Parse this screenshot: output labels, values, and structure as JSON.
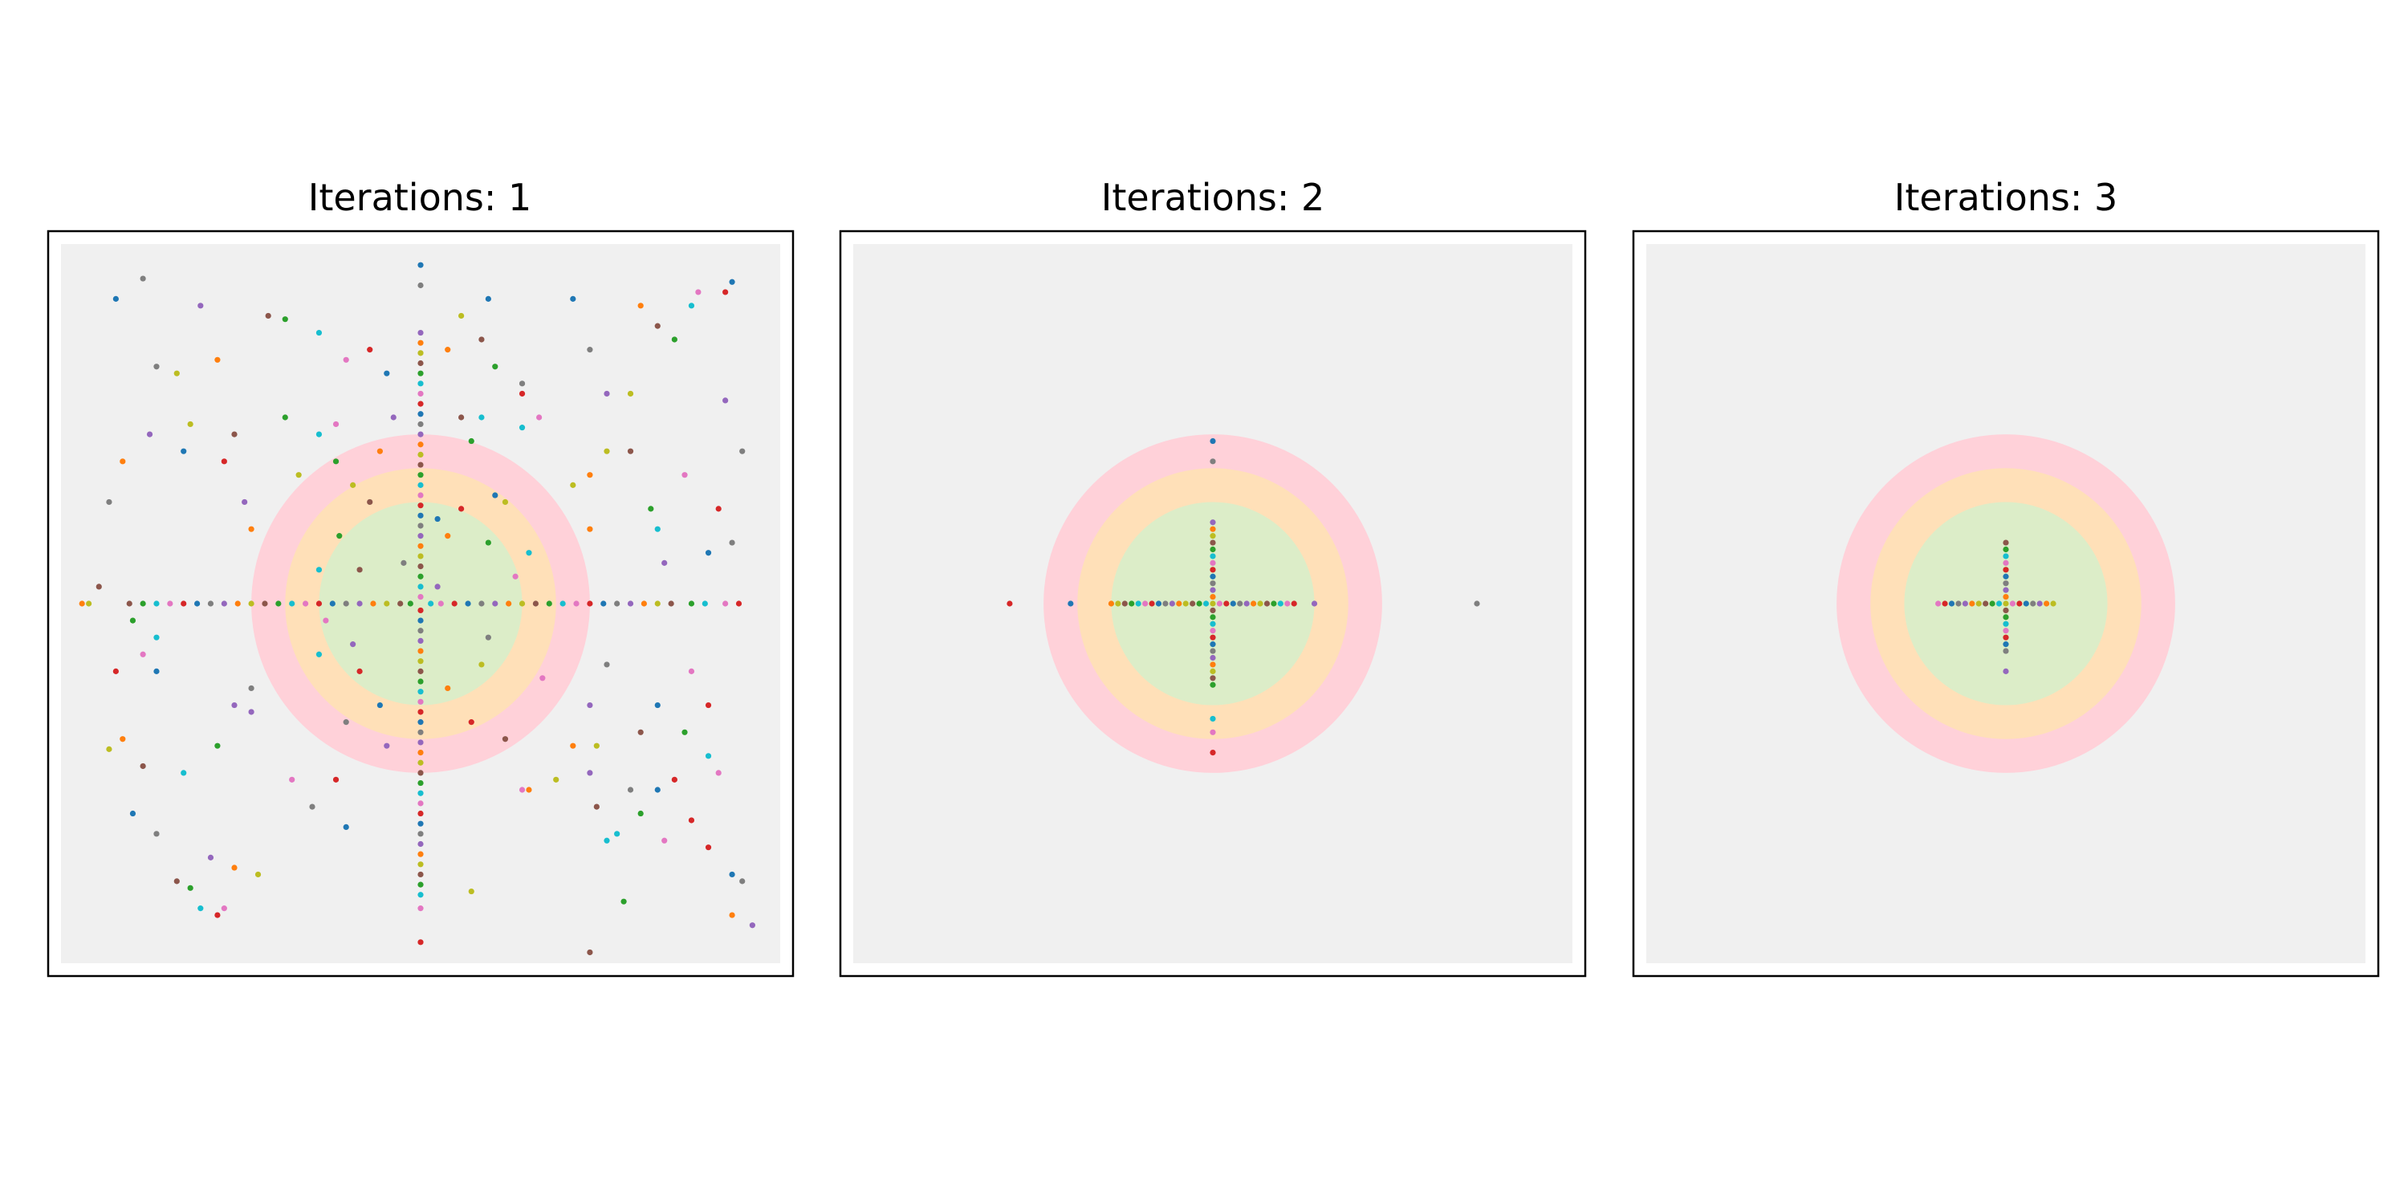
{
  "figure": {
    "background": "#ffffff"
  },
  "colors": {
    "panel_background": "#f0f0f0",
    "frame": "#000000",
    "ring_outer": "#ffd1d9",
    "ring_middle": "#ffe0b8",
    "ring_inner": "#dcedc8",
    "palette": [
      "#1f77b4",
      "#ff7f0e",
      "#2ca02c",
      "#d62728",
      "#9467bd",
      "#8c564b",
      "#e377c2",
      "#7f7f7f",
      "#bcbd22",
      "#17becf"
    ]
  },
  "chart_data": [
    {
      "type": "scatter",
      "title": "Iterations: 1",
      "xlim": [
        -1.1,
        1.1
      ],
      "ylim": [
        -1.1,
        1.1
      ],
      "axes_visible": false,
      "grid": false,
      "rings": [
        0.5,
        0.4,
        0.3
      ],
      "points": [
        [
          -0.9,
          0.9
        ],
        [
          -0.82,
          0.96
        ],
        [
          -0.65,
          0.88
        ],
        [
          -0.6,
          0.72
        ],
        [
          -0.72,
          0.68
        ],
        [
          -0.45,
          0.85
        ],
        [
          -0.4,
          0.84
        ],
        [
          -0.3,
          0.8
        ],
        [
          -0.22,
          0.72
        ],
        [
          -0.15,
          0.75
        ],
        [
          -0.1,
          0.68
        ],
        [
          -0.78,
          0.7
        ],
        [
          -0.8,
          0.5
        ],
        [
          -0.88,
          0.42
        ],
        [
          -0.68,
          0.53
        ],
        [
          -0.55,
          0.5
        ],
        [
          -0.4,
          0.55
        ],
        [
          -0.3,
          0.5
        ],
        [
          -0.25,
          0.53
        ],
        [
          -0.58,
          0.42
        ],
        [
          -0.7,
          0.45
        ],
        [
          -0.92,
          0.3
        ],
        [
          -0.52,
          0.3
        ],
        [
          -0.5,
          0.22
        ],
        [
          -0.36,
          0.38
        ],
        [
          -0.95,
          0.05
        ],
        [
          -0.85,
          -0.05
        ],
        [
          -0.78,
          -0.1
        ],
        [
          -0.82,
          -0.15
        ],
        [
          -0.9,
          -0.2
        ],
        [
          -0.78,
          -0.2
        ],
        [
          -0.5,
          -0.25
        ],
        [
          -0.55,
          -0.3
        ],
        [
          -0.88,
          -0.4
        ],
        [
          -0.92,
          -0.43
        ],
        [
          -0.82,
          -0.48
        ],
        [
          -0.6,
          -0.42
        ],
        [
          -0.7,
          -0.5
        ],
        [
          -0.38,
          -0.52
        ],
        [
          -0.25,
          -0.52
        ],
        [
          -0.85,
          -0.62
        ],
        [
          -0.78,
          -0.68
        ],
        [
          -0.62,
          -0.75
        ],
        [
          -0.55,
          -0.78
        ],
        [
          -0.48,
          -0.8
        ],
        [
          -0.72,
          -0.82
        ],
        [
          -0.68,
          -0.84
        ],
        [
          -0.65,
          -0.9
        ],
        [
          -0.58,
          -0.9
        ],
        [
          -0.6,
          -0.92
        ],
        [
          -0.22,
          -0.66
        ],
        [
          -0.32,
          -0.6
        ],
        [
          -0.5,
          -0.32
        ],
        [
          0.08,
          0.75
        ],
        [
          0.12,
          0.85
        ],
        [
          0.18,
          0.78
        ],
        [
          0.22,
          0.7
        ],
        [
          0.3,
          0.52
        ],
        [
          0.35,
          0.55
        ],
        [
          0.3,
          0.62
        ],
        [
          0.45,
          0.9
        ],
        [
          0.5,
          0.75
        ],
        [
          0.55,
          0.62
        ],
        [
          0.65,
          0.88
        ],
        [
          0.62,
          0.62
        ],
        [
          0.7,
          0.82
        ],
        [
          0.75,
          0.78
        ],
        [
          0.8,
          0.88
        ],
        [
          0.82,
          0.92
        ],
        [
          0.9,
          0.92
        ],
        [
          0.92,
          0.95
        ],
        [
          0.95,
          0.45
        ],
        [
          0.9,
          0.6
        ],
        [
          0.5,
          0.38
        ],
        [
          0.55,
          0.45
        ],
        [
          0.62,
          0.45
        ],
        [
          0.68,
          0.28
        ],
        [
          0.7,
          0.22
        ],
        [
          0.78,
          0.38
        ],
        [
          0.88,
          0.28
        ],
        [
          0.85,
          0.15
        ],
        [
          0.92,
          0.18
        ],
        [
          0.72,
          0.12
        ],
        [
          0.5,
          0.22
        ],
        [
          0.45,
          0.35
        ],
        [
          0.12,
          0.55
        ],
        [
          0.15,
          0.48
        ],
        [
          0.18,
          0.55
        ],
        [
          0.8,
          -0.2
        ],
        [
          0.85,
          -0.3
        ],
        [
          0.7,
          -0.3
        ],
        [
          0.55,
          -0.18
        ],
        [
          0.5,
          -0.3
        ],
        [
          0.45,
          -0.42
        ],
        [
          0.52,
          -0.42
        ],
        [
          0.65,
          -0.38
        ],
        [
          0.78,
          -0.38
        ],
        [
          0.85,
          -0.45
        ],
        [
          0.88,
          -0.5
        ],
        [
          0.75,
          -0.52
        ],
        [
          0.7,
          -0.55
        ],
        [
          0.62,
          -0.55
        ],
        [
          0.5,
          -0.5
        ],
        [
          0.32,
          -0.55
        ],
        [
          0.4,
          -0.52
        ],
        [
          0.52,
          -0.6
        ],
        [
          0.65,
          -0.62
        ],
        [
          0.58,
          -0.68
        ],
        [
          0.72,
          -0.7
        ],
        [
          0.85,
          -0.72
        ],
        [
          0.92,
          -0.8
        ],
        [
          0.95,
          -0.82
        ],
        [
          0.98,
          -0.95
        ],
        [
          0.92,
          -0.92
        ],
        [
          0.15,
          -0.85
        ],
        [
          0.5,
          -1.03
        ],
        [
          0.6,
          -0.88
        ],
        [
          0.55,
          -0.7
        ],
        [
          0.3,
          -0.55
        ],
        [
          0.8,
          -0.64
        ],
        [
          0.2,
          0.9
        ],
        [
          0.3,
          0.65
        ],
        [
          -0.08,
          0.55
        ],
        [
          -0.12,
          0.45
        ],
        [
          -0.2,
          0.35
        ],
        [
          -0.15,
          0.3
        ],
        [
          -0.25,
          0.42
        ],
        [
          -0.3,
          0.1
        ],
        [
          -0.28,
          -0.05
        ],
        [
          -0.18,
          -0.2
        ],
        [
          -0.12,
          -0.3
        ],
        [
          -0.22,
          -0.35
        ],
        [
          -0.1,
          -0.42
        ],
        [
          0.08,
          -0.25
        ],
        [
          0.18,
          -0.18
        ],
        [
          0.25,
          -0.4
        ],
        [
          0.2,
          0.18
        ],
        [
          0.32,
          0.15
        ],
        [
          0.28,
          0.08
        ],
        [
          0.12,
          0.28
        ],
        [
          0.22,
          0.32
        ],
        [
          -0.05,
          0.12
        ],
        [
          0.05,
          0.05
        ],
        [
          0.08,
          0.2
        ],
        [
          0.25,
          0.3
        ],
        [
          -0.18,
          0.1
        ],
        [
          -0.24,
          0.2
        ],
        [
          -0.3,
          -0.15
        ],
        [
          0.36,
          -0.22
        ],
        [
          0.15,
          -0.35
        ],
        [
          0.05,
          0.25
        ],
        [
          0.2,
          -0.1
        ],
        [
          -0.2,
          -0.12
        ],
        [
          -1.0,
          0.0
        ],
        [
          -0.98,
          0.0
        ],
        [
          -0.86,
          0.0
        ],
        [
          -0.82,
          0.0
        ],
        [
          -0.78,
          0.0
        ],
        [
          -0.74,
          0.0
        ],
        [
          -0.7,
          0.0
        ],
        [
          -0.66,
          0.0
        ],
        [
          -0.62,
          0.0
        ],
        [
          -0.58,
          0.0
        ],
        [
          -0.54,
          0.0
        ],
        [
          -0.5,
          0.0
        ],
        [
          -0.46,
          0.0
        ],
        [
          -0.42,
          0.0
        ],
        [
          -0.38,
          0.0
        ],
        [
          -0.34,
          0.0
        ],
        [
          -0.3,
          0.0
        ],
        [
          -0.26,
          0.0
        ],
        [
          -0.22,
          0.0
        ],
        [
          -0.18,
          0.0
        ],
        [
          -0.14,
          0.0
        ],
        [
          -0.1,
          0.0
        ],
        [
          -0.06,
          0.0
        ],
        [
          -0.03,
          0.0
        ],
        [
          0.03,
          0.0
        ],
        [
          0.06,
          0.0
        ],
        [
          0.1,
          0.0
        ],
        [
          0.14,
          0.0
        ],
        [
          0.18,
          0.0
        ],
        [
          0.22,
          0.0
        ],
        [
          0.26,
          0.0
        ],
        [
          0.3,
          0.0
        ],
        [
          0.34,
          0.0
        ],
        [
          0.38,
          0.0
        ],
        [
          0.42,
          0.0
        ],
        [
          0.46,
          0.0
        ],
        [
          0.5,
          0.0
        ],
        [
          0.54,
          0.0
        ],
        [
          0.58,
          0.0
        ],
        [
          0.62,
          0.0
        ],
        [
          0.66,
          0.0
        ],
        [
          0.7,
          0.0
        ],
        [
          0.74,
          0.0
        ],
        [
          0.8,
          0.0
        ],
        [
          0.84,
          0.0
        ],
        [
          0.9,
          0.0
        ],
        [
          0.94,
          0.0
        ],
        [
          0.0,
          1.0
        ],
        [
          0.0,
          0.94
        ],
        [
          0.0,
          0.8
        ],
        [
          0.0,
          0.77
        ],
        [
          0.0,
          0.74
        ],
        [
          0.0,
          0.71
        ],
        [
          0.0,
          0.68
        ],
        [
          0.0,
          0.65
        ],
        [
          0.0,
          0.62
        ],
        [
          0.0,
          0.59
        ],
        [
          0.0,
          0.56
        ],
        [
          0.0,
          0.53
        ],
        [
          0.0,
          0.5
        ],
        [
          0.0,
          0.47
        ],
        [
          0.0,
          0.44
        ],
        [
          0.0,
          0.41
        ],
        [
          0.0,
          0.38
        ],
        [
          0.0,
          0.35
        ],
        [
          0.0,
          0.32
        ],
        [
          0.0,
          0.29
        ],
        [
          0.0,
          0.26
        ],
        [
          0.0,
          0.23
        ],
        [
          0.0,
          0.2
        ],
        [
          0.0,
          0.17
        ],
        [
          0.0,
          0.14
        ],
        [
          0.0,
          0.11
        ],
        [
          0.0,
          0.08
        ],
        [
          0.0,
          0.05
        ],
        [
          0.0,
          0.02
        ],
        [
          0.0,
          -0.02
        ],
        [
          0.0,
          -0.05
        ],
        [
          0.0,
          -0.08
        ],
        [
          0.0,
          -0.11
        ],
        [
          0.0,
          -0.14
        ],
        [
          0.0,
          -0.17
        ],
        [
          0.0,
          -0.2
        ],
        [
          0.0,
          -0.23
        ],
        [
          0.0,
          -0.26
        ],
        [
          0.0,
          -0.29
        ],
        [
          0.0,
          -0.32
        ],
        [
          0.0,
          -0.35
        ],
        [
          0.0,
          -0.38
        ],
        [
          0.0,
          -0.41
        ],
        [
          0.0,
          -0.44
        ],
        [
          0.0,
          -0.47
        ],
        [
          0.0,
          -0.5
        ],
        [
          0.0,
          -0.53
        ],
        [
          0.0,
          -0.56
        ],
        [
          0.0,
          -0.59
        ],
        [
          0.0,
          -0.62
        ],
        [
          0.0,
          -0.65
        ],
        [
          0.0,
          -0.68
        ],
        [
          0.0,
          -0.71
        ],
        [
          0.0,
          -0.74
        ],
        [
          0.0,
          -0.77
        ],
        [
          0.0,
          -0.8
        ],
        [
          0.0,
          -0.83
        ],
        [
          0.0,
          -0.86
        ],
        [
          0.0,
          -0.9
        ],
        [
          0.0,
          -1.0
        ]
      ]
    },
    {
      "type": "scatter",
      "title": "Iterations: 2",
      "xlim": [
        -1.1,
        1.1
      ],
      "ylim": [
        -1.1,
        1.1
      ],
      "axes_visible": false,
      "grid": false,
      "rings": [
        0.5,
        0.4,
        0.3
      ],
      "points": [
        [
          -0.6,
          0.0
        ],
        [
          -0.42,
          0.0
        ],
        [
          0.78,
          0.0
        ],
        [
          0.3,
          0.0
        ],
        [
          -0.3,
          0.0
        ],
        [
          -0.28,
          0.0
        ],
        [
          -0.26,
          0.0
        ],
        [
          -0.24,
          0.0
        ],
        [
          -0.22,
          0.0
        ],
        [
          -0.2,
          0.0
        ],
        [
          -0.18,
          0.0
        ],
        [
          -0.16,
          0.0
        ],
        [
          -0.14,
          0.0
        ],
        [
          -0.12,
          0.0
        ],
        [
          -0.1,
          0.0
        ],
        [
          -0.08,
          0.0
        ],
        [
          -0.06,
          0.0
        ],
        [
          -0.04,
          0.0
        ],
        [
          -0.02,
          0.0
        ],
        [
          0.02,
          0.0
        ],
        [
          0.04,
          0.0
        ],
        [
          0.06,
          0.0
        ],
        [
          0.08,
          0.0
        ],
        [
          0.1,
          0.0
        ],
        [
          0.12,
          0.0
        ],
        [
          0.14,
          0.0
        ],
        [
          0.16,
          0.0
        ],
        [
          0.18,
          0.0
        ],
        [
          0.2,
          0.0
        ],
        [
          0.22,
          0.0
        ],
        [
          0.24,
          0.0
        ],
        [
          0.0,
          0.48
        ],
        [
          0.0,
          0.42
        ],
        [
          0.0,
          0.24
        ],
        [
          0.0,
          0.22
        ],
        [
          0.0,
          0.2
        ],
        [
          0.0,
          0.18
        ],
        [
          0.0,
          0.16
        ],
        [
          0.0,
          0.14
        ],
        [
          0.0,
          0.12
        ],
        [
          0.0,
          0.1
        ],
        [
          0.0,
          0.08
        ],
        [
          0.0,
          0.06
        ],
        [
          0.0,
          0.04
        ],
        [
          0.0,
          0.02
        ],
        [
          0.0,
          0.0
        ],
        [
          0.0,
          -0.02
        ],
        [
          0.0,
          -0.04
        ],
        [
          0.0,
          -0.06
        ],
        [
          0.0,
          -0.08
        ],
        [
          0.0,
          -0.1
        ],
        [
          0.0,
          -0.12
        ],
        [
          0.0,
          -0.14
        ],
        [
          0.0,
          -0.16
        ],
        [
          0.0,
          -0.18
        ],
        [
          0.0,
          -0.2
        ],
        [
          0.0,
          -0.22
        ],
        [
          0.0,
          -0.24
        ],
        [
          0.0,
          -0.34
        ],
        [
          0.0,
          -0.38
        ],
        [
          0.0,
          -0.44
        ]
      ]
    },
    {
      "type": "scatter",
      "title": "Iterations: 3",
      "xlim": [
        -1.1,
        1.1
      ],
      "ylim": [
        -1.1,
        1.1
      ],
      "axes_visible": false,
      "grid": false,
      "rings": [
        0.5,
        0.4,
        0.3
      ],
      "points": [
        [
          -0.2,
          0.0
        ],
        [
          -0.18,
          0.0
        ],
        [
          -0.16,
          0.0
        ],
        [
          -0.14,
          0.0
        ],
        [
          -0.12,
          0.0
        ],
        [
          -0.1,
          0.0
        ],
        [
          -0.08,
          0.0
        ],
        [
          -0.06,
          0.0
        ],
        [
          -0.04,
          0.0
        ],
        [
          -0.02,
          0.0
        ],
        [
          0.02,
          0.0
        ],
        [
          0.04,
          0.0
        ],
        [
          0.06,
          0.0
        ],
        [
          0.08,
          0.0
        ],
        [
          0.1,
          0.0
        ],
        [
          0.12,
          0.0
        ],
        [
          0.14,
          0.0
        ],
        [
          0.0,
          0.18
        ],
        [
          0.0,
          0.16
        ],
        [
          0.0,
          0.14
        ],
        [
          0.0,
          0.12
        ],
        [
          0.0,
          0.1
        ],
        [
          0.0,
          0.08
        ],
        [
          0.0,
          0.06
        ],
        [
          0.0,
          0.04
        ],
        [
          0.0,
          0.02
        ],
        [
          0.0,
          0.0
        ],
        [
          0.0,
          -0.02
        ],
        [
          0.0,
          -0.04
        ],
        [
          0.0,
          -0.06
        ],
        [
          0.0,
          -0.08
        ],
        [
          0.0,
          -0.1
        ],
        [
          0.0,
          -0.12
        ],
        [
          0.0,
          -0.14
        ],
        [
          0.0,
          -0.2
        ]
      ]
    }
  ]
}
